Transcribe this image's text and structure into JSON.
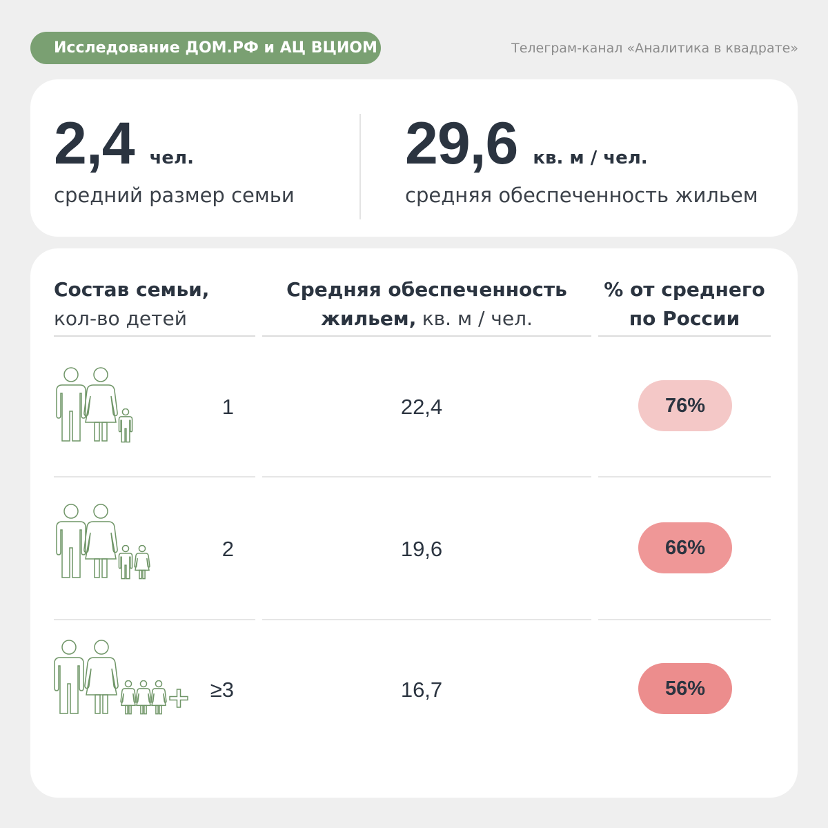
{
  "header": {
    "study_badge": "Исследование ДОМ.РФ и АЦ ВЦИОМ",
    "channel": "Телеграм-канал «Аналитика в квадрате»"
  },
  "summary": [
    {
      "value": "2,4",
      "unit": "чел.",
      "label": "средний размер семьи"
    },
    {
      "value": "29,6",
      "unit": "кв. м / чел.",
      "label": "средняя обеспеченность жильем"
    }
  ],
  "colors": {
    "accent_green": "#7aa072",
    "text_dark": "#2b3440",
    "icon_stroke": "#6f9567",
    "background": "#efefef",
    "card": "#ffffff"
  },
  "chart_data": {
    "type": "table",
    "columns": [
      {
        "line1": "Состав семьи,",
        "line2": "кол-во детей"
      },
      {
        "line1": "Средняя обеспеченность",
        "line2_bold": "жильем,",
        "line2": "кв. м / чел."
      },
      {
        "line1": "% от среднего",
        "line2": "по России"
      }
    ],
    "rows": [
      {
        "children": "1",
        "housing_label": "22,4",
        "housing": 22.4,
        "percent_label": "76%",
        "percent": 76,
        "icon": "family-one-child-icon",
        "badge_color": "#f4c8c7"
      },
      {
        "children": "2",
        "housing_label": "19,6",
        "housing": 19.6,
        "percent_label": "66%",
        "percent": 66,
        "icon": "family-two-children-icon",
        "badge_color": "#ef9797"
      },
      {
        "children": "≥3",
        "housing_label": "16,7",
        "housing": 16.7,
        "percent_label": "56%",
        "percent": 56,
        "icon": "family-three-plus-children-icon",
        "badge_color": "#ec8d8d"
      }
    ]
  }
}
